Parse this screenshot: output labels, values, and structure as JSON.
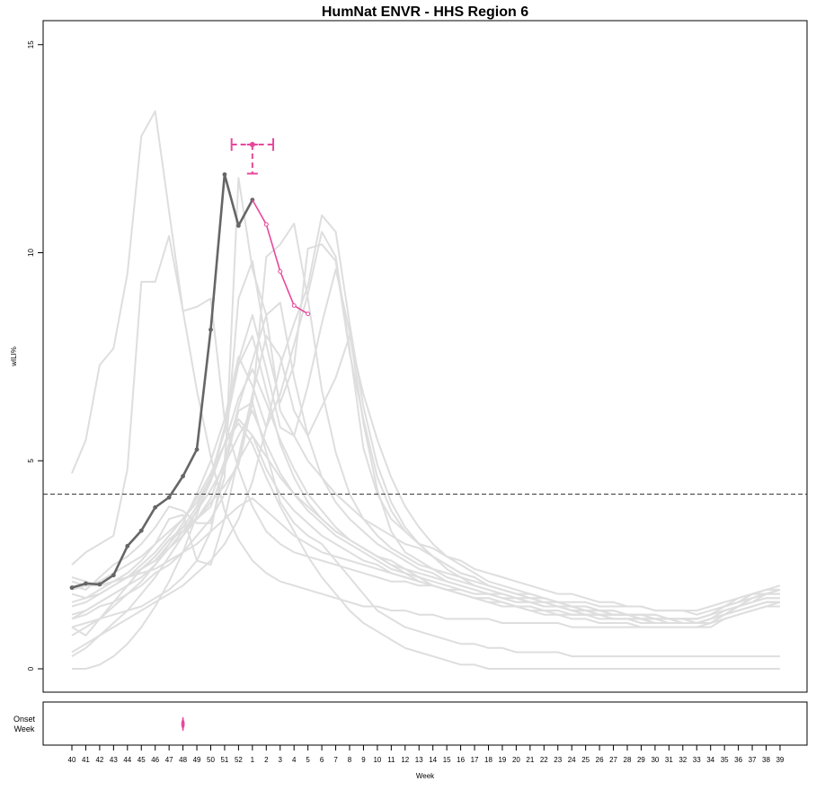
{
  "chart_data": {
    "type": "line",
    "title": "HumNat ENVR - HHS Region 6",
    "xlabel": "Week",
    "ylabel": "wILI%",
    "ylim": [
      0,
      15.5
    ],
    "yticks": [
      "0",
      "5",
      "10",
      "15"
    ],
    "categories": [
      "40",
      "41",
      "42",
      "43",
      "44",
      "45",
      "46",
      "47",
      "48",
      "49",
      "50",
      "51",
      "52",
      "1",
      "2",
      "3",
      "4",
      "5",
      "6",
      "7",
      "8",
      "9",
      "10",
      "11",
      "12",
      "13",
      "14",
      "15",
      "16",
      "17",
      "18",
      "19",
      "20",
      "21",
      "22",
      "23",
      "24",
      "25",
      "26",
      "27",
      "28",
      "29",
      "30",
      "31",
      "32",
      "33",
      "34",
      "35",
      "36",
      "37",
      "38",
      "39"
    ],
    "baseline": 4.2,
    "colors": {
      "history": "#dedede",
      "observed": "#666666",
      "forecast": "#e8489c",
      "baseline": "#333333"
    },
    "history_series": [
      [
        4.7,
        5.5,
        7.3,
        7.7,
        9.5,
        12.8,
        13.4,
        11.0,
        8.6,
        6.7,
        5.1,
        3.8,
        3.1,
        2.6,
        2.3,
        2.1,
        2.0,
        1.9,
        1.8,
        1.7,
        1.6,
        1.5,
        1.5,
        1.4,
        1.4,
        1.3,
        1.3,
        1.2,
        1.2,
        1.2,
        1.2,
        1.1,
        1.1,
        1.1,
        1.1,
        1.1,
        1.0,
        1.0,
        1.0,
        1.0,
        1.0,
        1.0,
        1.0,
        1.0,
        1.0,
        1.0,
        1.0,
        1.2,
        1.3,
        1.4,
        1.5,
        1.5
      ],
      [
        2.5,
        2.8,
        3.0,
        3.2,
        4.8,
        9.3,
        9.3,
        10.4,
        8.6,
        8.7,
        8.9,
        6.0,
        4.8,
        3.9,
        3.3,
        3.0,
        2.8,
        2.7,
        2.6,
        2.5,
        2.4,
        2.3,
        2.2,
        2.1,
        2.1,
        2.0,
        2.0,
        1.9,
        1.9,
        1.8,
        1.8,
        1.8,
        1.7,
        1.7,
        1.7,
        1.6,
        1.6,
        1.6,
        1.5,
        1.5,
        1.5,
        1.5,
        1.4,
        1.4,
        1.4,
        1.4,
        1.5,
        1.6,
        1.7,
        1.8,
        1.8,
        1.9
      ],
      [
        2.0,
        1.9,
        2.2,
        2.5,
        2.7,
        3.0,
        3.4,
        3.9,
        3.8,
        3.5,
        3.5,
        4.6,
        11.8,
        9.6,
        8.5,
        6.2,
        5.6,
        5.0,
        4.6,
        4.2,
        3.9,
        3.6,
        3.4,
        3.2,
        3.0,
        2.9,
        2.7,
        2.5,
        2.3,
        2.2,
        2.0,
        1.9,
        1.8,
        1.8,
        1.7,
        1.6,
        1.5,
        1.5,
        1.4,
        1.4,
        1.3,
        1.3,
        1.2,
        1.2,
        1.2,
        1.2,
        1.3,
        1.5,
        1.6,
        1.8,
        1.9,
        1.9
      ],
      [
        1.2,
        1.4,
        1.6,
        1.8,
        2.0,
        2.4,
        2.7,
        3.1,
        3.3,
        3.6,
        4.0,
        4.4,
        4.9,
        6.4,
        9.9,
        10.2,
        10.7,
        8.9,
        6.7,
        5.2,
        4.2,
        3.6,
        3.2,
        2.9,
        2.7,
        2.5,
        2.4,
        2.2,
        2.1,
        2.0,
        1.9,
        1.8,
        1.7,
        1.6,
        1.6,
        1.5,
        1.5,
        1.4,
        1.4,
        1.3,
        1.3,
        1.3,
        1.2,
        1.2,
        1.2,
        1.2,
        1.3,
        1.5,
        1.7,
        1.8,
        1.9,
        2.0
      ],
      [
        1.8,
        1.7,
        1.8,
        2.0,
        2.2,
        2.4,
        2.6,
        2.9,
        3.2,
        3.6,
        4.1,
        5.0,
        6.3,
        7.4,
        8.5,
        8.8,
        7.0,
        5.6,
        4.6,
        4.0,
        3.6,
        3.3,
        3.0,
        2.8,
        2.6,
        2.4,
        2.3,
        2.1,
        2.0,
        1.9,
        1.8,
        1.7,
        1.6,
        1.6,
        1.5,
        1.5,
        1.4,
        1.4,
        1.3,
        1.3,
        1.3,
        1.2,
        1.2,
        1.2,
        1.2,
        1.1,
        1.1,
        1.3,
        1.5,
        1.6,
        1.8,
        1.8
      ],
      [
        1.0,
        1.1,
        1.2,
        1.3,
        1.4,
        1.5,
        1.7,
        1.9,
        2.2,
        2.6,
        3.3,
        5.0,
        8.9,
        9.8,
        7.8,
        6.4,
        7.3,
        10.1,
        10.2,
        9.8,
        7.6,
        6.0,
        4.6,
        3.8,
        3.3,
        3.0,
        2.7,
        2.5,
        2.3,
        2.2,
        2.0,
        1.9,
        1.8,
        1.7,
        1.6,
        1.6,
        1.5,
        1.4,
        1.4,
        1.3,
        1.3,
        1.2,
        1.2,
        1.2,
        1.1,
        1.1,
        1.1,
        1.3,
        1.5,
        1.7,
        1.8,
        1.9
      ],
      [
        0.4,
        0.6,
        0.8,
        1.0,
        1.2,
        1.4,
        1.6,
        1.8,
        2.0,
        2.3,
        2.6,
        3.0,
        3.6,
        4.5,
        5.8,
        7.3,
        8.3,
        9.2,
        10.9,
        10.5,
        8.3,
        6.3,
        4.9,
        4.0,
        3.4,
        3.0,
        2.7,
        2.4,
        2.2,
        2.0,
        1.9,
        1.8,
        1.7,
        1.6,
        1.5,
        1.5,
        1.4,
        1.3,
        1.3,
        1.2,
        1.2,
        1.2,
        1.1,
        1.1,
        1.1,
        1.1,
        1.2,
        1.4,
        1.5,
        1.7,
        1.8,
        1.9
      ],
      [
        1.6,
        1.7,
        1.9,
        2.1,
        2.3,
        2.6,
        3.0,
        3.6,
        3.7,
        2.6,
        2.5,
        3.6,
        5.1,
        6.6,
        8.0,
        7.5,
        6.2,
        5.6,
        6.3,
        7.0,
        8.0,
        6.6,
        5.5,
        4.6,
        3.9,
        3.4,
        3.0,
        2.7,
        2.5,
        2.3,
        2.1,
        2.0,
        1.9,
        1.8,
        1.7,
        1.6,
        1.5,
        1.5,
        1.4,
        1.4,
        1.3,
        1.3,
        1.3,
        1.2,
        1.2,
        1.2,
        1.3,
        1.5,
        1.6,
        1.8,
        1.8,
        1.9
      ],
      [
        1.9,
        2.0,
        2.1,
        2.3,
        2.5,
        2.7,
        3.0,
        3.3,
        3.6,
        4.0,
        4.6,
        5.7,
        7.3,
        8.0,
        6.7,
        5.4,
        4.6,
        4.0,
        3.6,
        3.3,
        3.1,
        2.9,
        2.7,
        2.6,
        2.4,
        2.3,
        2.2,
        2.1,
        2.0,
        1.9,
        1.8,
        1.7,
        1.7,
        1.6,
        1.5,
        1.5,
        1.4,
        1.4,
        1.3,
        1.3,
        1.3,
        1.2,
        1.2,
        1.2,
        1.2,
        1.2,
        1.3,
        1.4,
        1.5,
        1.6,
        1.7,
        1.7
      ],
      [
        2.2,
        2.1,
        2.0,
        2.1,
        2.2,
        2.4,
        2.7,
        3.1,
        3.4,
        3.9,
        4.6,
        5.8,
        7.4,
        8.5,
        7.2,
        5.8,
        5.6,
        6.8,
        8.3,
        9.6,
        8.1,
        5.9,
        4.3,
        3.3,
        2.8,
        2.6,
        2.4,
        2.3,
        2.2,
        2.1,
        2.0,
        1.9,
        1.8,
        1.7,
        1.7,
        1.6,
        1.5,
        1.5,
        1.4,
        1.4,
        1.3,
        1.3,
        1.3,
        1.2,
        1.2,
        1.2,
        1.3,
        1.5,
        1.6,
        1.7,
        1.8,
        1.8
      ],
      [
        0.3,
        0.5,
        0.8,
        1.1,
        1.4,
        1.8,
        2.2,
        2.7,
        3.2,
        3.8,
        4.5,
        5.4,
        6.5,
        7.2,
        6.4,
        5.5,
        4.8,
        4.2,
        3.8,
        3.4,
        3.1,
        2.9,
        2.7,
        2.5,
        2.3,
        2.2,
        2.0,
        1.9,
        1.8,
        1.7,
        1.6,
        1.5,
        1.5,
        1.4,
        1.3,
        1.3,
        1.2,
        1.2,
        1.1,
        1.1,
        1.1,
        1.0,
        1.0,
        1.0,
        1.0,
        1.0,
        1.1,
        1.2,
        1.3,
        1.4,
        1.5,
        1.6
      ],
      [
        1.3,
        1.4,
        1.6,
        1.8,
        2.0,
        2.2,
        2.5,
        2.9,
        3.3,
        3.8,
        4.3,
        4.9,
        5.6,
        6.2,
        5.4,
        4.7,
        4.2,
        3.8,
        3.5,
        3.2,
        3.0,
        2.8,
        2.6,
        2.4,
        2.3,
        2.1,
        2.0,
        1.9,
        1.8,
        1.7,
        1.7,
        1.6,
        1.5,
        1.5,
        1.4,
        1.4,
        1.3,
        1.3,
        1.3,
        1.2,
        1.2,
        1.2,
        1.1,
        1.1,
        1.1,
        1.1,
        1.2,
        1.3,
        1.4,
        1.5,
        1.6,
        1.6
      ],
      [
        1.5,
        1.6,
        1.8,
        2.0,
        2.2,
        2.5,
        2.8,
        3.2,
        3.6,
        4.1,
        4.7,
        5.4,
        6.0,
        5.6,
        4.8,
        4.2,
        3.8,
        3.5,
        3.2,
        3.0,
        2.8,
        2.6,
        2.5,
        2.3,
        2.2,
        2.1,
        2.0,
        1.9,
        1.8,
        1.7,
        1.6,
        1.6,
        1.5,
        1.4,
        1.4,
        1.3,
        1.3,
        1.3,
        1.2,
        1.2,
        1.2,
        1.1,
        1.1,
        1.1,
        1.1,
        1.1,
        1.2,
        1.3,
        1.4,
        1.5,
        1.6,
        1.6
      ],
      [
        0.8,
        1.0,
        1.2,
        1.5,
        1.8,
        2.1,
        2.5,
        3.0,
        3.5,
        4.2,
        5.0,
        6.0,
        7.5,
        6.8,
        5.8,
        6.6,
        7.8,
        9.0,
        10.5,
        9.9,
        7.7,
        5.3,
        4.2,
        3.6,
        3.3,
        3.0,
        2.9,
        2.7,
        2.6,
        2.4,
        2.3,
        2.2,
        2.1,
        2.0,
        1.9,
        1.8,
        1.8,
        1.7,
        1.6,
        1.6,
        1.5,
        1.5,
        1.4,
        1.4,
        1.4,
        1.3,
        1.4,
        1.5,
        1.6,
        1.7,
        1.8,
        1.9
      ],
      [
        1.2,
        1.3,
        1.5,
        1.6,
        1.8,
        2.0,
        2.3,
        2.5,
        2.8,
        3.2,
        3.6,
        4.2,
        5.0,
        5.6,
        5.1,
        4.6,
        4.2,
        3.9,
        3.6,
        3.3,
        3.1,
        2.9,
        2.7,
        2.5,
        2.4,
        2.2,
        2.1,
        2.0,
        1.9,
        1.8,
        1.8,
        1.7,
        1.6,
        1.6,
        1.5,
        1.5,
        1.4,
        1.4,
        1.3,
        1.3,
        1.3,
        1.2,
        1.2,
        1.2,
        1.2,
        1.2,
        1.3,
        1.4,
        1.5,
        1.6,
        1.7,
        1.7
      ],
      [
        0.0,
        0.0,
        0.1,
        0.3,
        0.6,
        1.0,
        1.5,
        2.1,
        2.8,
        3.7,
        4.6,
        5.4,
        5.9,
        5.4,
        4.6,
        3.9,
        3.3,
        2.7,
        2.2,
        1.8,
        1.4,
        1.1,
        0.9,
        0.7,
        0.5,
        0.4,
        0.3,
        0.2,
        0.1,
        0.1,
        0.0,
        0.0,
        0.0,
        0.0,
        0.0,
        0.0,
        0.0,
        0.0,
        0.0,
        0.0,
        0.0,
        0.0,
        0.0,
        0.0,
        0.0,
        0.0,
        0.0,
        0.0,
        0.0,
        0.0,
        0.0,
        0.0
      ],
      [
        2.1,
        2.0,
        2.0,
        2.1,
        2.2,
        2.3,
        2.4,
        2.6,
        2.8,
        3.0,
        3.3,
        3.6,
        3.9,
        4.1,
        3.8,
        3.5,
        3.2,
        3.0,
        2.8,
        2.7,
        2.6,
        2.5,
        2.4,
        2.3,
        2.2,
        2.1,
        2.0,
        1.9,
        1.8,
        1.7,
        1.7,
        1.6,
        1.5,
        1.5,
        1.4,
        1.4,
        1.3,
        1.3,
        1.3,
        1.2,
        1.2,
        1.2,
        1.2,
        1.1,
        1.1,
        1.1,
        1.2,
        1.3,
        1.4,
        1.5,
        1.6,
        1.6
      ],
      [
        1.0,
        0.8,
        1.2,
        1.6,
        2.0,
        2.4,
        2.6,
        3.0,
        3.4,
        3.6,
        3.9,
        4.8,
        6.2,
        6.4,
        5.2,
        4.0,
        3.5,
        3.2,
        3.0,
        2.6,
        2.2,
        1.8,
        1.4,
        1.2,
        1.0,
        0.9,
        0.8,
        0.7,
        0.6,
        0.6,
        0.5,
        0.5,
        0.4,
        0.4,
        0.4,
        0.4,
        0.3,
        0.3,
        0.3,
        0.3,
        0.3,
        0.3,
        0.3,
        0.3,
        0.3,
        0.3,
        0.3,
        0.3,
        0.3,
        0.3,
        0.3,
        0.3
      ]
    ],
    "observed": {
      "name": "observed",
      "x_index": [
        0,
        1,
        2,
        3,
        4,
        5,
        6,
        7,
        8,
        9,
        10,
        11,
        12,
        13
      ],
      "values": [
        1.95,
        2.05,
        2.03,
        2.25,
        2.95,
        3.32,
        3.88,
        4.12,
        4.63,
        5.27,
        8.15,
        11.88,
        10.65,
        11.27
      ]
    },
    "forecast": {
      "name": "forecast",
      "x_index": [
        13,
        14,
        15,
        16,
        17
      ],
      "values": [
        11.27,
        10.68,
        9.55,
        8.73,
        8.53
      ]
    },
    "peak": {
      "x_index": 13,
      "y": 12.6,
      "x_low": 11.5,
      "x_high": 14.5,
      "y_low": 11.9,
      "y_high": 12.6
    },
    "onset": {
      "label_line1": "Onset",
      "label_line2": "Week",
      "x_index": 8,
      "x_low": 8,
      "x_high": 8
    }
  }
}
